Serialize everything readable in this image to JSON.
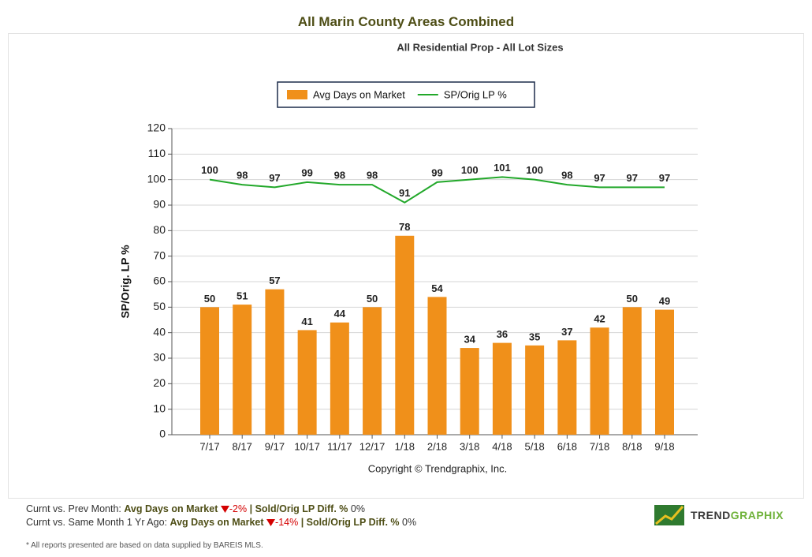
{
  "chart_data": {
    "type": "bar",
    "title": "All Marin County Areas Combined",
    "subtitle": "All Residential Prop - All Lot Sizes",
    "ylabel": "SP/Orig. LP %",
    "copyright": "Copyright © Trendgraphix, Inc.",
    "categories": [
      "7/17",
      "8/17",
      "9/17",
      "10/17",
      "11/17",
      "12/17",
      "1/18",
      "2/18",
      "3/18",
      "4/18",
      "5/18",
      "6/18",
      "7/18",
      "8/18",
      "9/18"
    ],
    "series": [
      {
        "name": "Avg Days on Market",
        "type": "bar",
        "color": "#f0901a",
        "values": [
          50,
          51,
          57,
          41,
          44,
          50,
          78,
          54,
          34,
          36,
          35,
          37,
          42,
          50,
          49
        ]
      },
      {
        "name": "SP/Orig LP %",
        "type": "line",
        "color": "#22a82a",
        "values": [
          100,
          98,
          97,
          99,
          98,
          98,
          91,
          99,
          100,
          101,
          100,
          98,
          97,
          97,
          97
        ]
      }
    ],
    "ylim": [
      0,
      120
    ],
    "yticks": [
      0,
      10,
      20,
      30,
      40,
      50,
      60,
      70,
      80,
      90,
      100,
      110,
      120
    ],
    "grid": true,
    "legend": "top"
  },
  "footer": {
    "rows": [
      {
        "prefix": "Curnt vs. Prev Month:",
        "metric1": "Avg Days on Market",
        "change1": "-2%",
        "metric2": "| Sold/Orig LP Diff. %",
        "change2": "0%"
      },
      {
        "prefix": "Curnt vs. Same Month 1 Yr Ago:",
        "metric1": "Avg Days on Market",
        "change1": "-14%",
        "metric2": "| Sold/Orig LP Diff. %",
        "change2": "0%"
      }
    ],
    "note": "* All reports presented are based on data supplied by BAREIS MLS."
  },
  "logo": {
    "part1": "TREND",
    "part2": "GRAPHIX"
  }
}
